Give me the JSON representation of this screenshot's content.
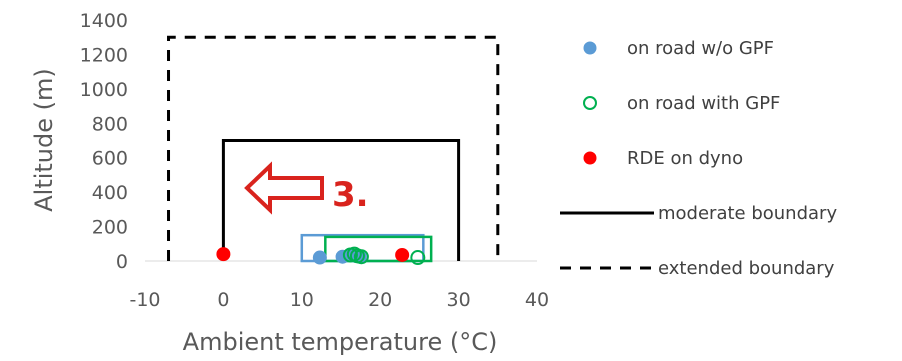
{
  "chart_data": {
    "type": "scatter",
    "title": "",
    "xlabel": "Ambient temperature (°C)",
    "ylabel": "Altitude (m)",
    "xlim": [
      -10,
      40
    ],
    "ylim": [
      0,
      1400
    ],
    "xticks": [
      "-10",
      "0",
      "10",
      "20",
      "30",
      "40"
    ],
    "yticks": [
      "0",
      "200",
      "400",
      "600",
      "800",
      "1000",
      "1200",
      "1400"
    ],
    "grid": false,
    "legend_position": "right",
    "series": [
      {
        "name": "on road w/o GPF",
        "marker": "filled-circle",
        "color": "#5b9bd5",
        "points": [
          [
            12.3,
            20
          ],
          [
            15.2,
            25
          ],
          [
            16.1,
            35
          ],
          [
            16.8,
            30
          ],
          [
            17.4,
            25
          ]
        ]
      },
      {
        "name": "on road with GPF",
        "marker": "open-circle",
        "color": "#00b050",
        "points": [
          [
            16.2,
            35
          ],
          [
            16.7,
            40
          ],
          [
            17.1,
            30
          ],
          [
            17.6,
            25
          ],
          [
            24.8,
            20
          ]
        ]
      },
      {
        "name": "RDE on dyno",
        "marker": "filled-circle",
        "color": "#ff0000",
        "points": [
          [
            0.0,
            40
          ],
          [
            22.8,
            35
          ]
        ]
      }
    ],
    "boundaries": [
      {
        "name": "moderate boundary",
        "style": "solid",
        "color": "#000000",
        "polyline": [
          [
            0,
            0
          ],
          [
            0,
            700
          ],
          [
            30,
            700
          ],
          [
            30,
            0
          ]
        ]
      },
      {
        "name": "extended boundary",
        "style": "dashed",
        "color": "#000000",
        "polyline": [
          [
            -7,
            0
          ],
          [
            -7,
            1300
          ],
          [
            35,
            1300
          ],
          [
            35,
            0
          ]
        ]
      }
    ],
    "rectangles": [
      {
        "color": "#5b9bd5",
        "x": [
          10,
          25.5
        ],
        "y": [
          0,
          150
        ]
      },
      {
        "color": "#00b050",
        "x": [
          13,
          26.5
        ],
        "y": [
          0,
          140
        ]
      }
    ],
    "annotation": {
      "text": "3.",
      "arrow_direction": "left",
      "color": "#d9231d"
    }
  }
}
